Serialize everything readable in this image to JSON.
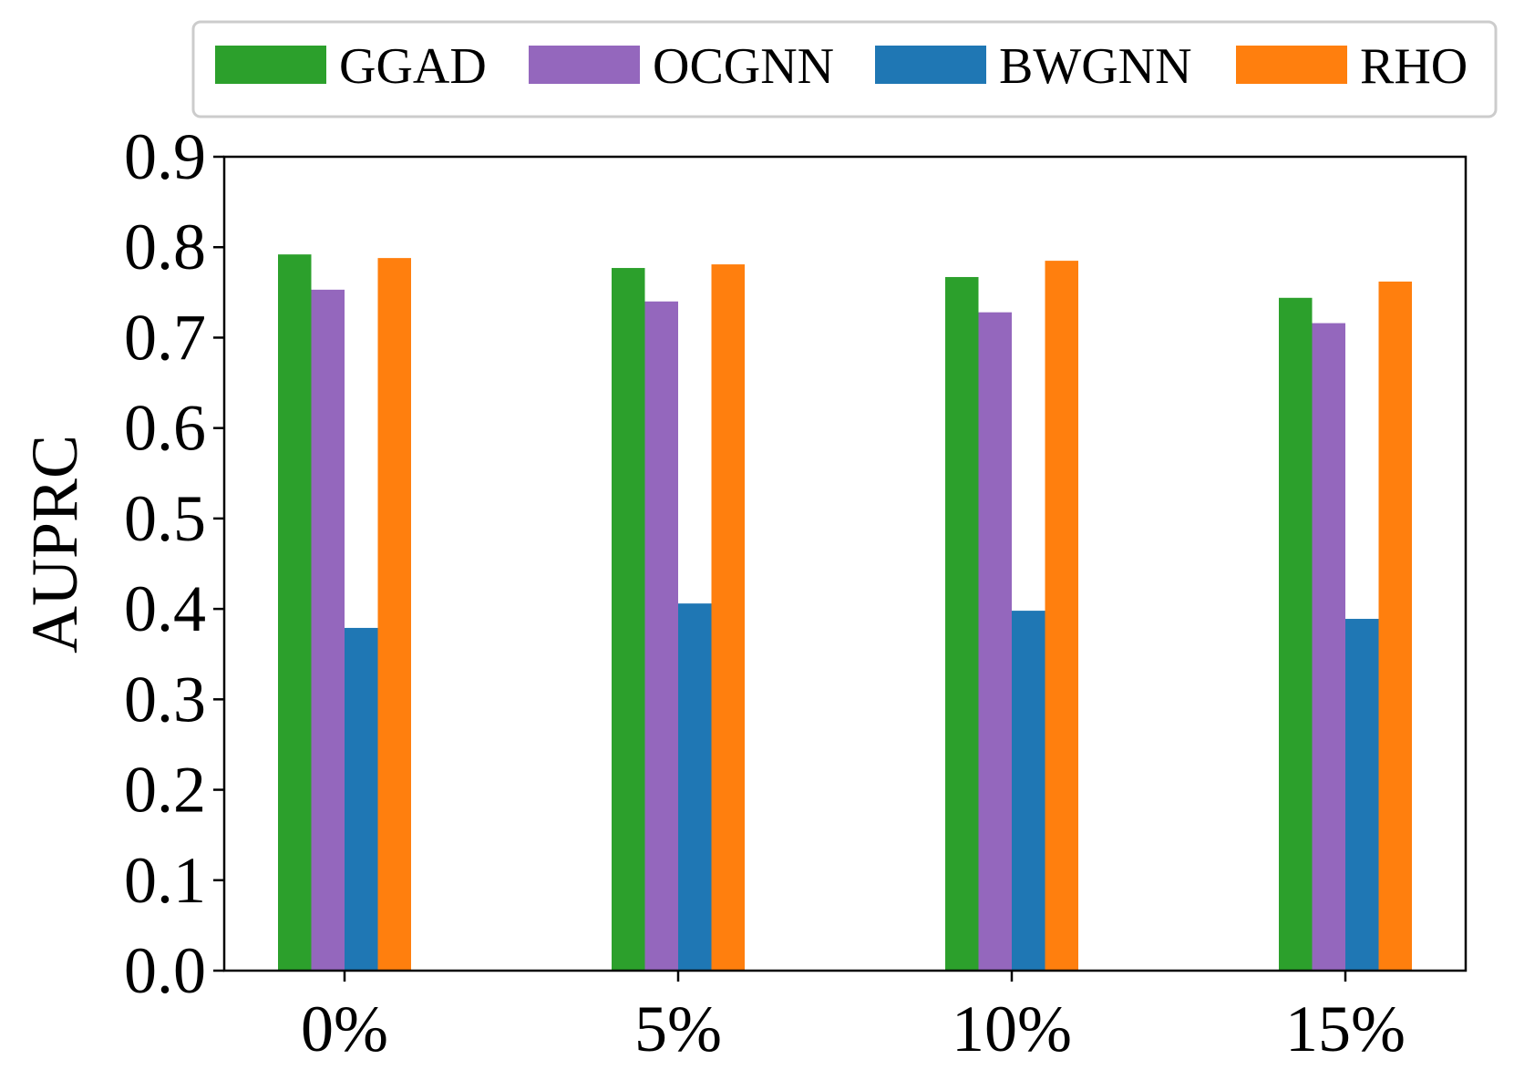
{
  "chart_data": {
    "type": "bar",
    "title": "",
    "xlabel": "",
    "ylabel": "AUPRC",
    "ylim": [
      0,
      0.9
    ],
    "yticks": [
      "0.0",
      "0.1",
      "0.2",
      "0.3",
      "0.4",
      "0.5",
      "0.6",
      "0.7",
      "0.8",
      "0.9"
    ],
    "categories": [
      "0%",
      "5%",
      "10%",
      "15%"
    ],
    "grid": false,
    "legend_position": "top",
    "series": [
      {
        "name": "GGAD",
        "color": "#2ca02c",
        "values": [
          0.792,
          0.777,
          0.767,
          0.744
        ]
      },
      {
        "name": "OCGNN",
        "color": "#9467bd",
        "values": [
          0.753,
          0.74,
          0.728,
          0.716
        ]
      },
      {
        "name": "BWGNN",
        "color": "#1f77b4",
        "values": [
          0.379,
          0.406,
          0.398,
          0.389
        ]
      },
      {
        "name": "RHO",
        "color": "#ff7f0e",
        "values": [
          0.788,
          0.781,
          0.785,
          0.762
        ]
      }
    ]
  }
}
